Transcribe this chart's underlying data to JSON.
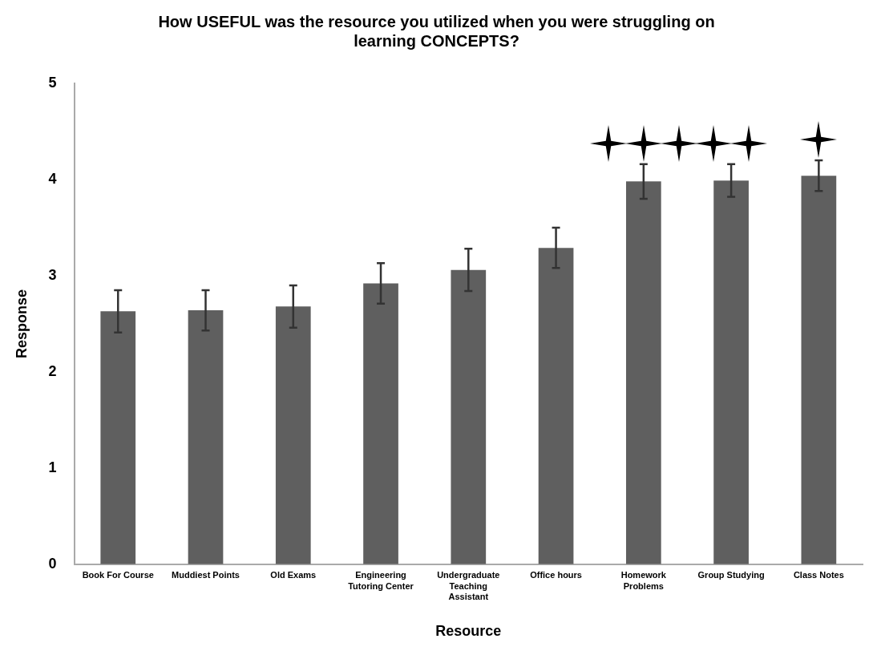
{
  "chart_data": {
    "type": "bar",
    "title": "How USEFUL was the resource you utilized when you were struggling on learning CONCEPTS?",
    "xlabel": "Resource",
    "ylabel": "Response",
    "categories": [
      "Book For Course",
      "Muddiest Points",
      "Old Exams",
      "Engineering Tutoring Center",
      "Undergraduate Teaching Assistant",
      "Office hours",
      "Homework Problems",
      "Group Studying",
      "Class Notes"
    ],
    "values": [
      2.63,
      2.64,
      2.68,
      2.92,
      3.06,
      3.29,
      3.98,
      3.99,
      4.04
    ],
    "errors": [
      0.22,
      0.21,
      0.22,
      0.21,
      0.22,
      0.21,
      0.18,
      0.17,
      0.16
    ],
    "color": "#5f5f5f",
    "ylim": [
      0,
      5
    ],
    "yticks": [
      0,
      1,
      2,
      3,
      4,
      5
    ],
    "grid": false,
    "legend": false
  }
}
